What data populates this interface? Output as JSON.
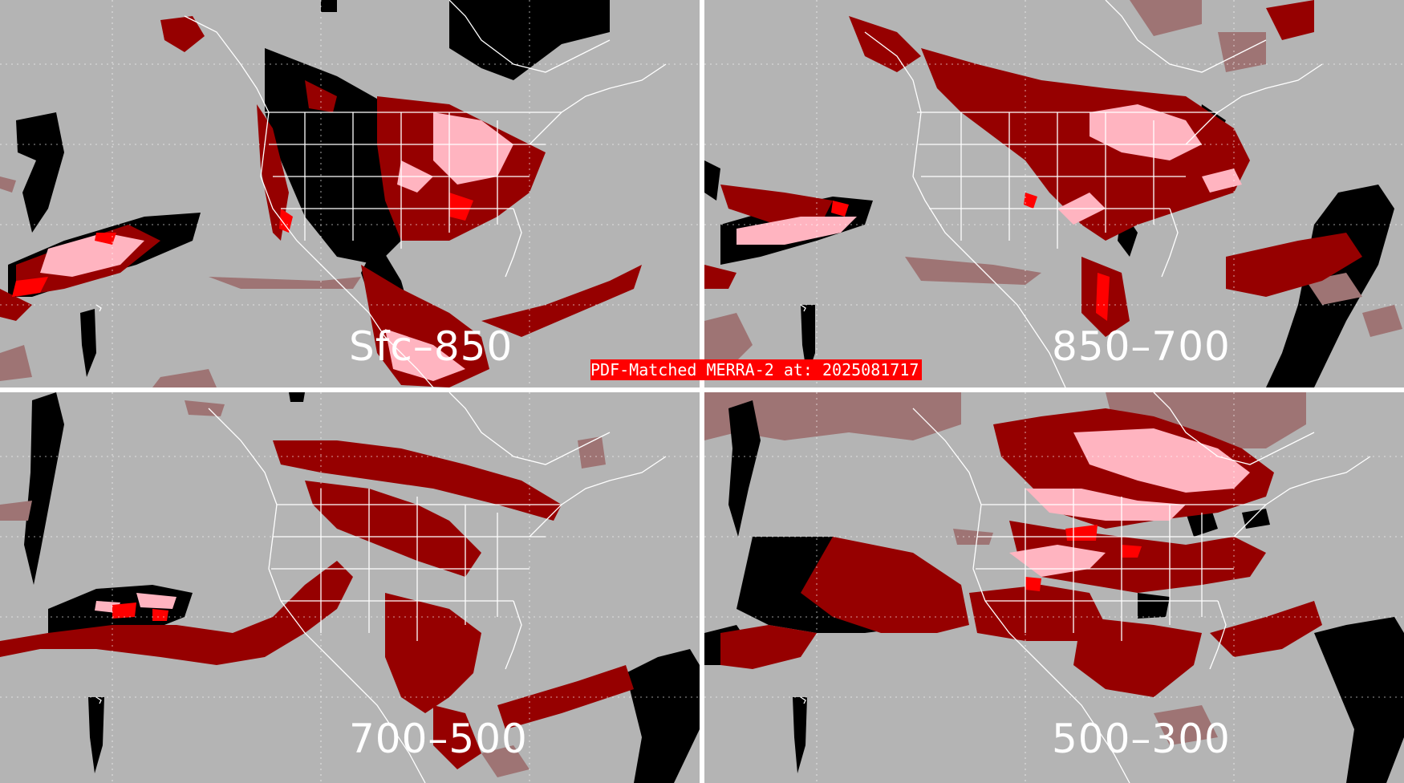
{
  "title": "PDF-Matched MERRA-2 at: 2025081717",
  "title_highlight": "PDF-Matched MERRA-2 at: 202",
  "title_tail": "5081717",
  "colors": {
    "background": "#b4b4b4",
    "black": "#000000",
    "dark_red": "#960000",
    "red": "#ff0000",
    "pink": "#ffb4c0",
    "mauve": "#9e7474",
    "lines": "#ffffff",
    "banner": "#ff0000"
  },
  "panels": [
    {
      "id": "tl",
      "label": "Sfc–850"
    },
    {
      "id": "tr",
      "label": "850–700"
    },
    {
      "id": "bl",
      "label": "700–500"
    },
    {
      "id": "br",
      "label": "500–300"
    }
  ]
}
